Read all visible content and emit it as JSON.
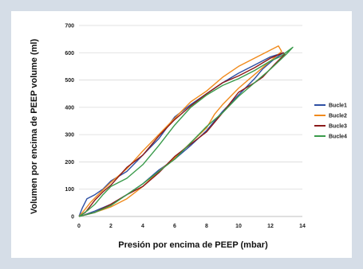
{
  "chart_data": {
    "type": "line",
    "title": "",
    "xlabel": "Presión por encima de PEEP (mbar)",
    "ylabel": "Volumen por encima de PEEP volume (ml)",
    "xlim": [
      0,
      14
    ],
    "ylim": [
      0,
      700
    ],
    "x_ticks": [
      "0",
      "2",
      "4",
      "6",
      "8",
      "10",
      "12",
      "14"
    ],
    "y_ticks": [
      "0",
      "100",
      "200",
      "300",
      "400",
      "500",
      "600",
      "700"
    ],
    "grid": "horizontal",
    "legend": "right",
    "series": [
      {
        "name": "Bucle1",
        "color": "#2e4fa3",
        "points": [
          [
            0,
            0
          ],
          [
            0.2,
            30
          ],
          [
            0.5,
            65
          ],
          [
            1,
            80
          ],
          [
            1.5,
            100
          ],
          [
            2,
            130
          ],
          [
            3,
            165
          ],
          [
            4,
            225
          ],
          [
            5,
            285
          ],
          [
            6,
            365
          ],
          [
            7,
            410
          ],
          [
            8,
            450
          ],
          [
            9,
            490
          ],
          [
            10,
            525
          ],
          [
            11,
            555
          ],
          [
            12,
            585
          ],
          [
            12.8,
            600
          ],
          [
            12.2,
            575
          ],
          [
            11.5,
            540
          ],
          [
            11,
            505
          ],
          [
            10,
            445
          ],
          [
            9,
            385
          ],
          [
            8,
            315
          ],
          [
            7,
            260
          ],
          [
            6,
            210
          ],
          [
            5,
            170
          ],
          [
            4,
            120
          ],
          [
            3,
            80
          ],
          [
            2,
            45
          ],
          [
            1,
            20
          ],
          [
            0.3,
            5
          ],
          [
            0,
            0
          ]
        ]
      },
      {
        "name": "Bucle2",
        "color": "#f08a1c",
        "points": [
          [
            0,
            0
          ],
          [
            0.3,
            20
          ],
          [
            0.7,
            50
          ],
          [
            1.2,
            80
          ],
          [
            2,
            125
          ],
          [
            3,
            175
          ],
          [
            4,
            240
          ],
          [
            5,
            300
          ],
          [
            6,
            360
          ],
          [
            7,
            420
          ],
          [
            8,
            460
          ],
          [
            9,
            510
          ],
          [
            10,
            550
          ],
          [
            11,
            580
          ],
          [
            12,
            610
          ],
          [
            12.5,
            625
          ],
          [
            12.7,
            605
          ],
          [
            12,
            570
          ],
          [
            11,
            520
          ],
          [
            10,
            470
          ],
          [
            9,
            410
          ],
          [
            8.5,
            375
          ],
          [
            8,
            325
          ],
          [
            7,
            270
          ],
          [
            6,
            215
          ],
          [
            5,
            165
          ],
          [
            4,
            110
          ],
          [
            3,
            65
          ],
          [
            2,
            35
          ],
          [
            1,
            15
          ],
          [
            0,
            0
          ]
        ]
      },
      {
        "name": "Bucle3",
        "color": "#8b1a1a",
        "points": [
          [
            0,
            0
          ],
          [
            0.4,
            15
          ],
          [
            1,
            60
          ],
          [
            1.5,
            90
          ],
          [
            2,
            115
          ],
          [
            3,
            180
          ],
          [
            4,
            225
          ],
          [
            5,
            295
          ],
          [
            6,
            355
          ],
          [
            7,
            405
          ],
          [
            8,
            450
          ],
          [
            9,
            490
          ],
          [
            10,
            515
          ],
          [
            11,
            545
          ],
          [
            12,
            580
          ],
          [
            12.8,
            600
          ],
          [
            12.9,
            595
          ],
          [
            12.3,
            560
          ],
          [
            11.5,
            510
          ],
          [
            11,
            490
          ],
          [
            10,
            455
          ],
          [
            9,
            380
          ],
          [
            8,
            310
          ],
          [
            7,
            265
          ],
          [
            6,
            220
          ],
          [
            5,
            160
          ],
          [
            4,
            110
          ],
          [
            3,
            80
          ],
          [
            2,
            45
          ],
          [
            1,
            15
          ],
          [
            0,
            0
          ]
        ]
      },
      {
        "name": "Bucle4",
        "color": "#3a9b4b",
        "points": [
          [
            0,
            0
          ],
          [
            0.5,
            20
          ],
          [
            1,
            45
          ],
          [
            1.5,
            80
          ],
          [
            2,
            110
          ],
          [
            3,
            140
          ],
          [
            4,
            190
          ],
          [
            5,
            260
          ],
          [
            6,
            335
          ],
          [
            7,
            400
          ],
          [
            8,
            445
          ],
          [
            9,
            480
          ],
          [
            10,
            505
          ],
          [
            11,
            535
          ],
          [
            12,
            570
          ],
          [
            12.6,
            585
          ],
          [
            13.4,
            620
          ],
          [
            13,
            595
          ],
          [
            12,
            540
          ],
          [
            11,
            490
          ],
          [
            10,
            440
          ],
          [
            9,
            380
          ],
          [
            8,
            330
          ],
          [
            7,
            270
          ],
          [
            6,
            210
          ],
          [
            5,
            165
          ],
          [
            4,
            120
          ],
          [
            3,
            80
          ],
          [
            2,
            40
          ],
          [
            1,
            15
          ],
          [
            0,
            0
          ]
        ]
      }
    ]
  }
}
